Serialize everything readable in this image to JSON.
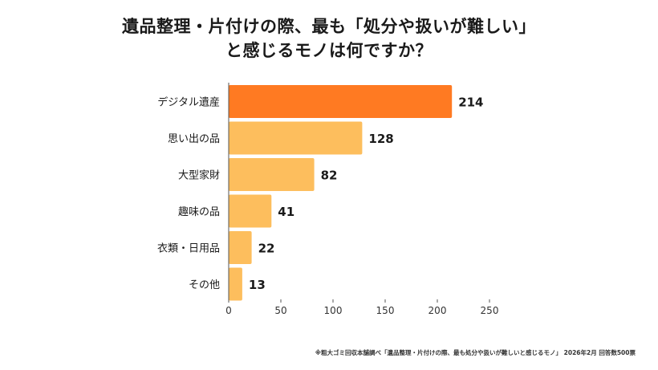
{
  "title_lines": [
    "遺品整理・片付けの際、最も「処分や扱いが難しい」",
    "と感じるモノは何ですか？"
  ],
  "footnote": "※粗大ゴミ回収本舗調べ「遺品整理・片付けの際、最も処分や扱いが難しいと感じるモノ」 2026年2月 回答数500票",
  "colors": {
    "highlight": "#FF7A22",
    "bar": "#FDBE5D",
    "axis": "#555555",
    "text": "#1a1a1a"
  },
  "chart_data": {
    "type": "bar",
    "orientation": "horizontal",
    "categories": [
      "デジタル遺産",
      "思い出の品",
      "大型家財",
      "趣味の品",
      "衣類・日用品",
      "その他"
    ],
    "values": [
      214,
      128,
      82,
      41,
      22,
      13
    ],
    "value_labels": [
      "214",
      "128",
      "82",
      "41",
      "22",
      "13"
    ],
    "highlight_index": 0,
    "xlim": [
      0,
      250
    ],
    "xticks": [
      0,
      50,
      100,
      150,
      200,
      250
    ],
    "grid": false
  }
}
